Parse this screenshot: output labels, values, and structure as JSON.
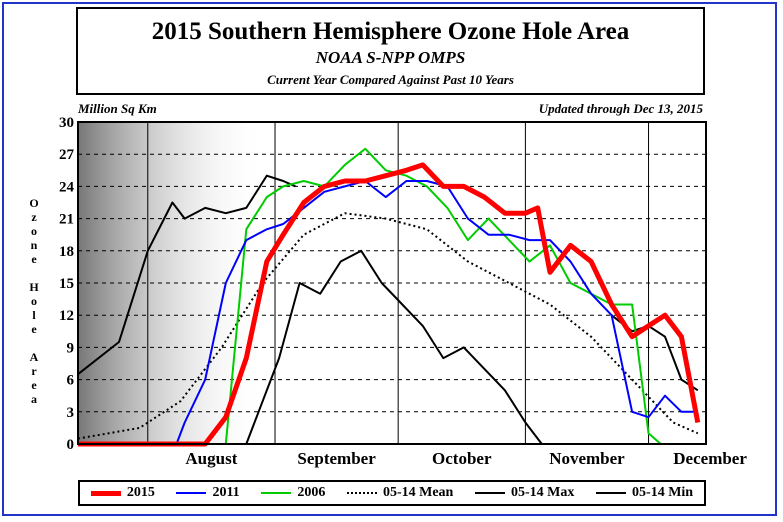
{
  "title": "2015 Southern Hemisphere Ozone Hole Area",
  "subtitle": "NOAA S-NPP OMPS",
  "subtitle2": "Current Year Compared Against Past 10 Years",
  "unit_label": "Million Sq Km",
  "updated_label": "Updated through Dec 13, 2015",
  "ylabel": "Ozone Hole Area",
  "frame_color": "#2233cc",
  "chart_data": {
    "type": "line",
    "title": "2015 Southern Hemisphere Ozone Hole Area",
    "ylabel": "Ozone Hole Area",
    "yunit": "Million Sq Km",
    "xlim": [
      "Jul 15",
      "Dec 15"
    ],
    "ylim": [
      0,
      30
    ],
    "yticks": [
      0,
      3,
      6,
      9,
      12,
      15,
      18,
      21,
      24,
      27,
      30
    ],
    "xticks": [
      "August",
      "September",
      "October",
      "November",
      "December"
    ],
    "month_lines": [
      "Aug 1",
      "Sep 1",
      "Oct 1",
      "Nov 1",
      "Dec 1"
    ],
    "grid": "dashed horizontal, solid vertical at month starts",
    "polar_night_shading": "left gradient, Jul 15 – Aug 30",
    "legend_position": "bottom",
    "series": [
      {
        "name": "2015",
        "color": "#ff0000",
        "style": "thick",
        "x": [
          "Jul 15",
          "Aug 15",
          "Aug 20",
          "Aug 25",
          "Aug 30",
          "Sep 3",
          "Sep 8",
          "Sep 13",
          "Sep 18",
          "Sep 23",
          "Sep 28",
          "Oct 3",
          "Oct 7",
          "Oct 12",
          "Oct 17",
          "Oct 22",
          "Oct 27",
          "Nov 1",
          "Nov 4",
          "Nov 7",
          "Nov 12",
          "Nov 17",
          "Nov 22",
          "Nov 27",
          "Dec 1",
          "Dec 5",
          "Dec 9",
          "Dec 13"
        ],
        "y": [
          0,
          0,
          2.5,
          8,
          17,
          19.5,
          22.5,
          24,
          24.5,
          24.5,
          25,
          25.5,
          26,
          24,
          24,
          23,
          21.5,
          21.5,
          22,
          16,
          18.5,
          17,
          13,
          10,
          11,
          12,
          10,
          2
        ]
      },
      {
        "name": "2011",
        "color": "#0000ff",
        "style": "normal",
        "x": [
          "Jul 15",
          "Aug 8",
          "Aug 10",
          "Aug 15",
          "Aug 20",
          "Aug 25",
          "Aug 30",
          "Sep 3",
          "Sep 8",
          "Sep 13",
          "Sep 18",
          "Sep 23",
          "Sep 28",
          "Oct 3",
          "Oct 8",
          "Oct 13",
          "Oct 18",
          "Oct 23",
          "Oct 28",
          "Nov 2",
          "Nov 7",
          "Nov 12",
          "Nov 17",
          "Nov 22",
          "Nov 27",
          "Dec 1",
          "Dec 5",
          "Dec 9",
          "Dec 13"
        ],
        "y": [
          0,
          0,
          2,
          6,
          15,
          19,
          20,
          20.5,
          22,
          23.5,
          24,
          24.5,
          23,
          24.5,
          24.5,
          24,
          21,
          19.5,
          19.5,
          19,
          19,
          17,
          14,
          12,
          3,
          2.5,
          4.5,
          3,
          3
        ]
      },
      {
        "name": "2006",
        "color": "#00cc00",
        "style": "normal",
        "x": [
          "Jul 15",
          "Aug 20",
          "Aug 25",
          "Aug 30",
          "Sep 3",
          "Sep 8",
          "Sep 13",
          "Sep 18",
          "Sep 23",
          "Sep 28",
          "Oct 3",
          "Oct 8",
          "Oct 13",
          "Oct 18",
          "Oct 23",
          "Oct 28",
          "Nov 2",
          "Nov 7",
          "Nov 12",
          "Nov 17",
          "Nov 22",
          "Nov 27",
          "Dec 1",
          "Dec 4",
          "Dec 13"
        ],
        "y": [
          0,
          0,
          20,
          23,
          24,
          24.5,
          24,
          26,
          27.5,
          25.5,
          25,
          24,
          22,
          19,
          21,
          19,
          17,
          18.5,
          15,
          14,
          13,
          13,
          1,
          0,
          0
        ]
      },
      {
        "name": "05-14 Mean",
        "color": "#000000",
        "style": "dotted",
        "x": [
          "Jul 15",
          "Jul 30",
          "Aug 9",
          "Aug 19",
          "Aug 29",
          "Sep 8",
          "Sep 18",
          "Sep 28",
          "Oct 8",
          "Oct 18",
          "Oct 28",
          "Nov 7",
          "Nov 17",
          "Nov 27",
          "Dec 7",
          "Dec 13"
        ],
        "y": [
          0.5,
          1.5,
          4,
          9,
          15,
          19.5,
          21.5,
          21,
          20,
          17,
          15,
          13,
          10,
          6,
          2,
          1
        ]
      },
      {
        "name": "05-14 Max",
        "color": "#000000",
        "style": "normal",
        "x": [
          "Jul 15",
          "Jul 25",
          "Aug 1",
          "Aug 7",
          "Aug 10",
          "Aug 15",
          "Aug 20",
          "Aug 25",
          "Aug 30",
          "Sep 3",
          "Sep 6"
        ],
        "y": [
          6.5,
          9.5,
          18,
          22.5,
          21,
          22,
          21.5,
          22,
          25,
          24.5,
          24
        ]
      },
      {
        "name": "05-14 Max",
        "color": "#000000",
        "style": "normal",
        "x": [
          "Nov 22",
          "Nov 27",
          "Dec 1",
          "Dec 5",
          "Dec 9",
          "Dec 13"
        ],
        "y": [
          12,
          10.5,
          11,
          10,
          6,
          5
        ]
      },
      {
        "name": "05-14 Min",
        "color": "#000000",
        "style": "normal",
        "x": [
          "Jul 15",
          "Aug 25",
          "Aug 28",
          "Sep 2",
          "Sep 7",
          "Sep 12",
          "Sep 17",
          "Sep 22",
          "Sep 27",
          "Oct 2",
          "Oct 7",
          "Oct 12",
          "Oct 17",
          "Oct 22",
          "Oct 27",
          "Nov 1",
          "Nov 5",
          "Dec 13"
        ],
        "y": [
          0,
          0,
          3,
          8,
          15,
          14,
          17,
          18,
          15,
          13,
          11,
          8,
          9,
          7,
          5,
          2,
          0,
          0
        ]
      }
    ]
  },
  "legend": [
    {
      "label": "2015",
      "color": "#ff0000",
      "style": "thick"
    },
    {
      "label": "2011",
      "color": "#0000ff",
      "style": "normal"
    },
    {
      "label": "2006",
      "color": "#00cc00",
      "style": "normal"
    },
    {
      "label": "05-14 Mean",
      "color": "#000000",
      "style": "dotted"
    },
    {
      "label": "05-14 Max",
      "color": "#000000",
      "style": "normal"
    },
    {
      "label": "05-14 Min",
      "color": "#000000",
      "style": "normal"
    }
  ]
}
